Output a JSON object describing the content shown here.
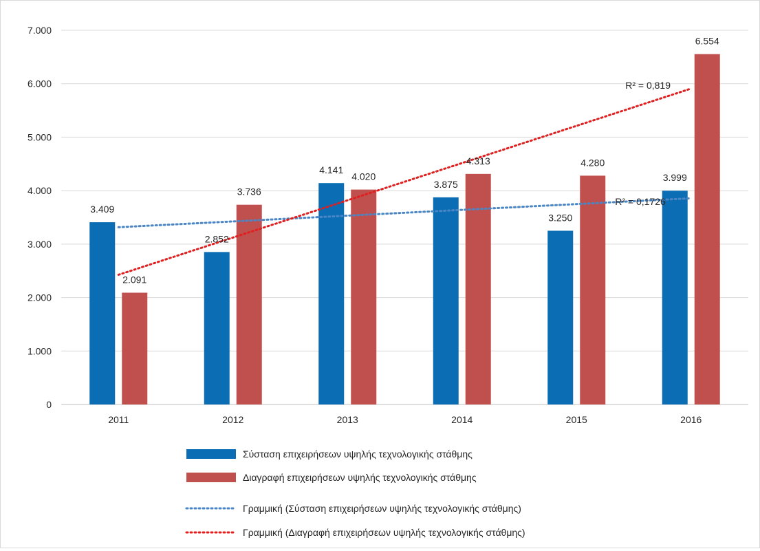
{
  "chart_data": {
    "type": "bar",
    "categories": [
      "2011",
      "2012",
      "2013",
      "2014",
      "2015",
      "2016"
    ],
    "ylim": [
      0,
      7000
    ],
    "yticks": [
      0,
      1000,
      2000,
      3000,
      4000,
      5000,
      6000,
      7000
    ],
    "ytick_labels": [
      "0",
      "1.000",
      "2.000",
      "3.000",
      "4.000",
      "5.000",
      "6.000",
      "7.000"
    ],
    "grid": true,
    "legend_position": "bottom",
    "series": [
      {
        "name": "Σύσταση επιχειρήσεων υψηλής τεχνολογικής στάθμης",
        "values": [
          3409,
          2852,
          4141,
          3875,
          3250,
          3999
        ],
        "labels": [
          "3.409",
          "2.852",
          "4.141",
          "3.875",
          "3.250",
          "3.999"
        ],
        "color": "#0b6db4"
      },
      {
        "name": "Διαγραφή επιχειρήσεων υψηλής τεχνολογικής στάθμης",
        "values": [
          2091,
          3736,
          4020,
          4313,
          4280,
          6554
        ],
        "labels": [
          "2.091",
          "3.736",
          "4.020",
          "4.313",
          "4.280",
          "6.554"
        ],
        "color": "#c0504d"
      }
    ],
    "trendlines": [
      {
        "name": "Γραμμική (Σύσταση επιχειρήσεων υψηλής τεχνολογικής στάθμης)",
        "start": 3316,
        "end": 3857,
        "r2_label": "R² = 0,1726",
        "color": "#4a86c5"
      },
      {
        "name": "Γραμμική (Διαγραφή επιχειρήσεων υψηλής τεχνολογικής στάθμης)",
        "start": 2426,
        "end": 5909,
        "r2_label": "R² = 0,819",
        "color": "#e02020"
      }
    ]
  }
}
